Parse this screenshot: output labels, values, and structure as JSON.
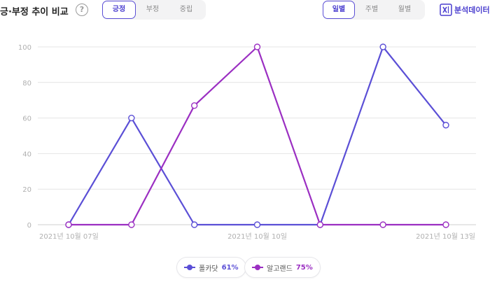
{
  "header": {
    "title": "긍·부정 추이 비교",
    "help_icon": "?",
    "sentiment_tabs": [
      {
        "label": "긍정",
        "active": true
      },
      {
        "label": "부정",
        "active": false
      },
      {
        "label": "중립",
        "active": false
      }
    ],
    "period_tabs": [
      {
        "label": "일별",
        "active": true
      },
      {
        "label": "주별",
        "active": false
      },
      {
        "label": "월별",
        "active": false
      }
    ],
    "export_label": "분석데이터",
    "export_icon": "excel-icon"
  },
  "colors": {
    "accent": "#4b3fcf",
    "series1": "#5b4fd6",
    "series2": "#9b2fc2",
    "grid": "#e4e4e4",
    "axis_text": "#b0b0b0"
  },
  "chart_data": {
    "type": "line",
    "x": [
      0,
      1,
      2,
      3,
      4,
      5,
      6
    ],
    "x_tick_labels": [
      {
        "index": 0,
        "label": "2021년 10월 07일"
      },
      {
        "index": 3,
        "label": "2021년 10월 10일"
      },
      {
        "index": 6,
        "label": "2021년 10월 13일"
      }
    ],
    "y_ticks": [
      0,
      20,
      40,
      60,
      80,
      100
    ],
    "ylim": [
      0,
      100
    ],
    "grid": true,
    "legend_position": "bottom-center",
    "series": [
      {
        "name": "폴카닷",
        "percent": "61%",
        "color": "#5b4fd6",
        "values": [
          0,
          60,
          0,
          0,
          0,
          100,
          56
        ]
      },
      {
        "name": "알고랜드",
        "percent": "75%",
        "color": "#9b2fc2",
        "values": [
          0,
          0,
          67,
          100,
          0,
          0,
          0
        ]
      }
    ]
  }
}
